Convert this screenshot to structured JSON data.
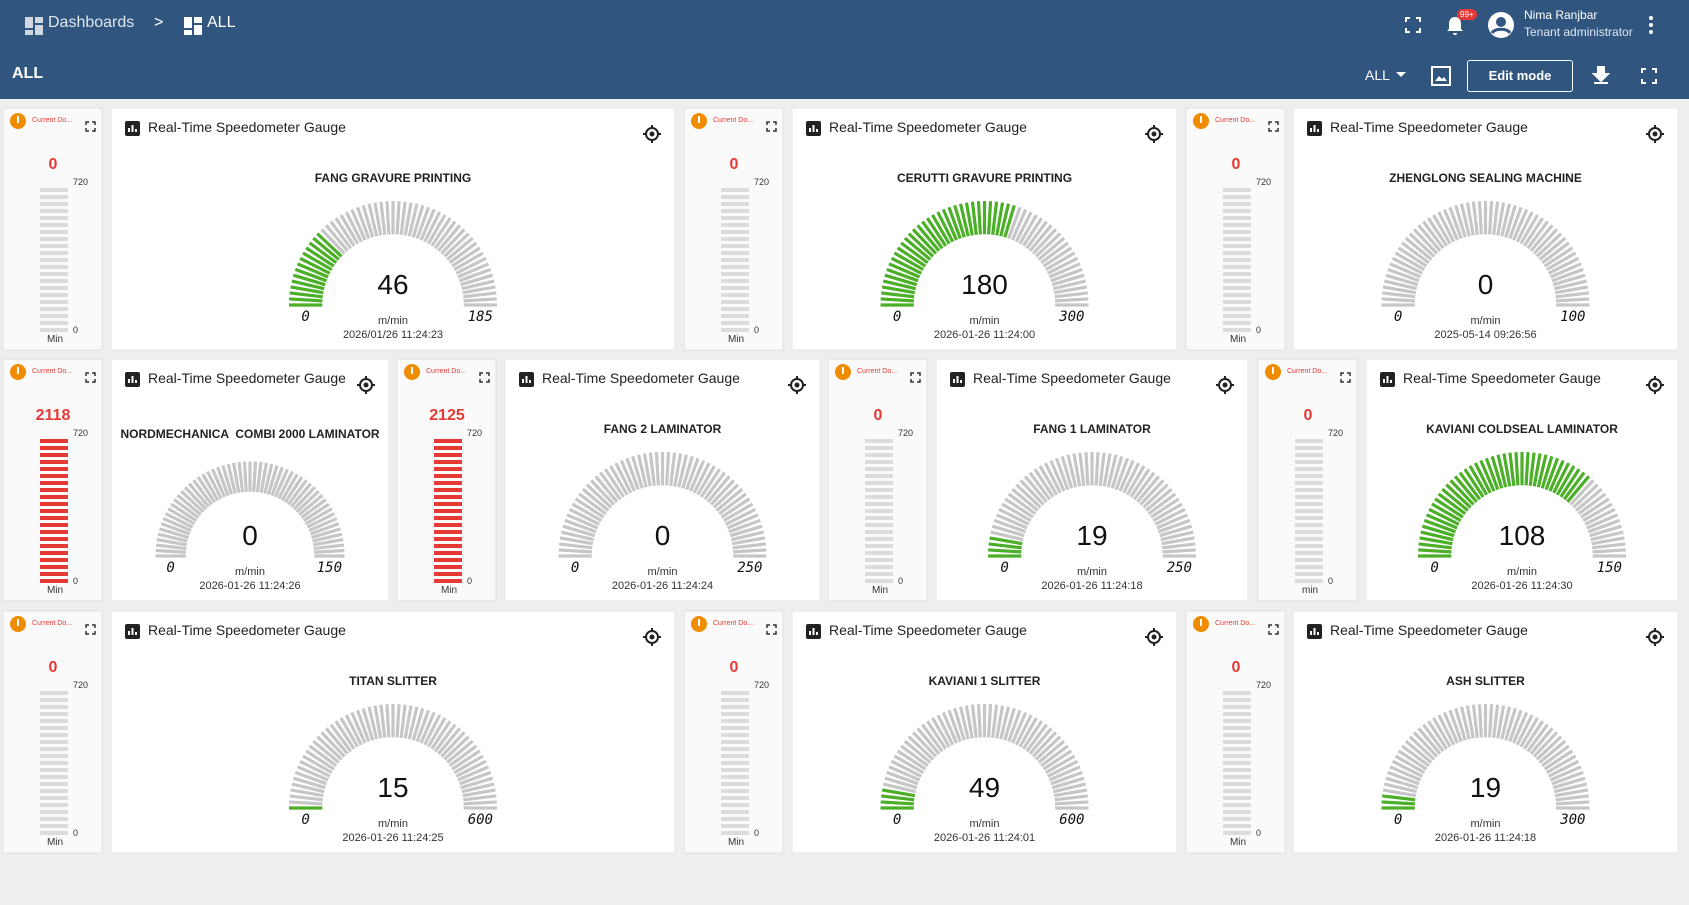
{
  "header": {
    "breadcrumb": [
      "Dashboards",
      ">",
      "ALL"
    ],
    "badge": "99+",
    "user_name": "Nima Ranjbar",
    "user_role": "Tenant administrator"
  },
  "toolbar": {
    "title": "ALL",
    "state": "ALL",
    "edit": "Edit mode"
  },
  "rows": [
    [
      {
        "status": {
          "title": "Current Do...",
          "value": 0,
          "max": 720,
          "min": 0,
          "min_label": "Min"
        },
        "gauge": {
          "title": "Real-Time Speedometer Gauge",
          "name": "FANG GRAVURE PRINTING",
          "value": 46,
          "min": 0,
          "max": 185,
          "unit": "m/min",
          "timestamp": "2026/01/26 11:24:23"
        }
      },
      {
        "status": {
          "title": "Current Do...",
          "value": 0,
          "max": 720,
          "min": 0,
          "min_label": "Min"
        },
        "gauge": {
          "title": "Real-Time Speedometer Gauge",
          "name": "CERUTTI GRAVURE PRINTING",
          "value": 180,
          "min": 0,
          "max": 300,
          "unit": "m/min",
          "timestamp": "2026-01-26 11:24:00"
        }
      },
      {
        "status": {
          "title": "Current Do...",
          "value": 0,
          "max": 720,
          "min": 0,
          "min_label": "Min"
        },
        "gauge": {
          "title": "Real-Time Speedometer Gauge",
          "name": "ZHENGLONG SEALING MACHINE",
          "value": 0,
          "min": 0,
          "max": 100,
          "unit": "m/min",
          "timestamp": "2025-05-14 09:26:56"
        }
      }
    ],
    [
      {
        "status": {
          "title": "Current Do...",
          "value": 2118,
          "max": 720,
          "min": 0,
          "min_label": "Min"
        },
        "gauge": {
          "title": "Real-Time Speedometer Gauge",
          "name": "NORDMECHANICA  COMBI 2000 LAMINATOR",
          "value": 0,
          "min": 0,
          "max": 150,
          "unit": "m/min",
          "timestamp": "2026-01-26 11:24:26"
        }
      },
      {
        "status": {
          "title": "Current Do...",
          "value": 2125,
          "max": 720,
          "min": 0,
          "min_label": "Min"
        },
        "gauge": {
          "title": "Real-Time Speedometer Gauge",
          "name": "FANG 2 LAMINATOR",
          "value": 0,
          "min": 0,
          "max": 250,
          "unit": "m/min",
          "timestamp": "2026-01-26 11:24:24"
        }
      },
      {
        "status": {
          "title": "Current Do...",
          "value": 0,
          "max": 720,
          "min": 0,
          "min_label": "Min"
        },
        "gauge": {
          "title": "Real-Time Speedometer Gauge",
          "name": "FANG 1 LAMINATOR",
          "value": 19,
          "min": 0,
          "max": 250,
          "unit": "m/min",
          "timestamp": "2026-01-26 11:24:18"
        }
      },
      {
        "status": {
          "title": "Current Do...",
          "value": 0,
          "max": 720,
          "min": 0,
          "min_label": "min"
        },
        "gauge": {
          "title": "Real-Time Speedometer Gauge",
          "name": "KAVIANI COLDSEAL LAMINATOR",
          "value": 108,
          "min": 0,
          "max": 150,
          "unit": "m/min",
          "timestamp": "2026-01-26 11:24:30"
        }
      }
    ],
    [
      {
        "status": {
          "title": "Current Do...",
          "value": 0,
          "max": 720,
          "min": 0,
          "min_label": "Min"
        },
        "gauge": {
          "title": "Real-Time Speedometer Gauge",
          "name": "TITAN SLITTER",
          "value": 15,
          "min": 0,
          "max": 600,
          "unit": "m/min",
          "timestamp": "2026-01-26 11:24:25"
        }
      },
      {
        "status": {
          "title": "Current Do...",
          "value": 0,
          "max": 720,
          "min": 0,
          "min_label": "Min"
        },
        "gauge": {
          "title": "Real-Time Speedometer Gauge",
          "name": "KAVIANI 1 SLITTER",
          "value": 49,
          "min": 0,
          "max": 600,
          "unit": "m/min",
          "timestamp": "2026-01-26 11:24:01"
        }
      },
      {
        "status": {
          "title": "Current Do...",
          "value": 0,
          "max": 720,
          "min": 0,
          "min_label": "Min"
        },
        "gauge": {
          "title": "Real-Time Speedometer Gauge",
          "name": "ASH SLITTER",
          "value": 19,
          "min": 0,
          "max": 300,
          "unit": "m/min",
          "timestamp": "2026-01-26 11:24:18"
        }
      }
    ]
  ]
}
